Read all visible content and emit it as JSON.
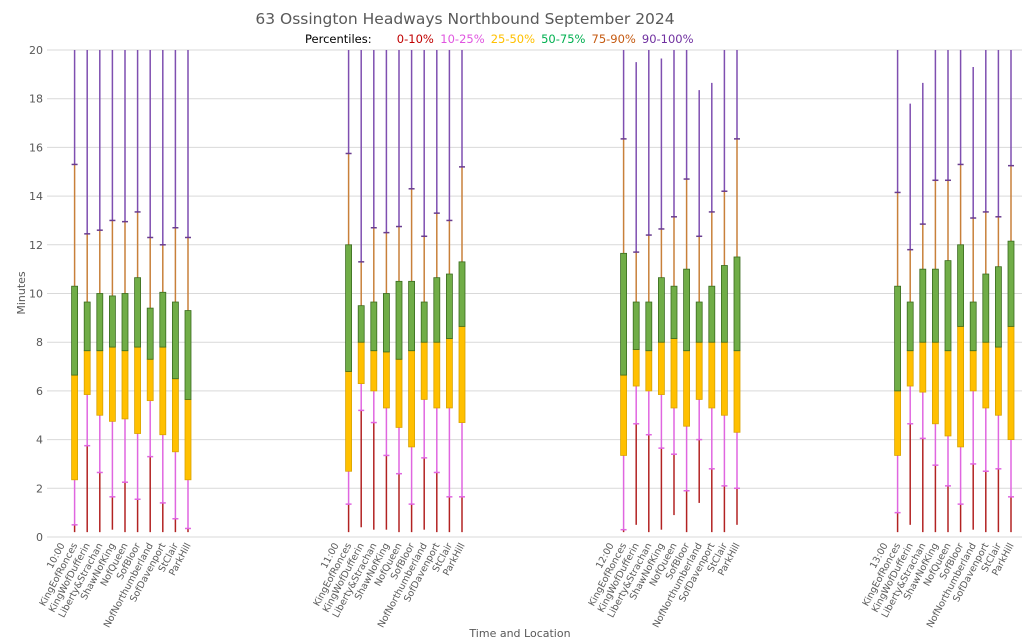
{
  "chart_data": {
    "type": "box",
    "title": "63 Ossington Headways Northbound September 2024",
    "legend": {
      "prefix": "Percentiles:",
      "entries": [
        {
          "label": "0-10%",
          "color": "#c00000"
        },
        {
          "label": "10-25%",
          "color": "#e055e0"
        },
        {
          "label": "25-50%",
          "color": "#ffc000"
        },
        {
          "label": "50-75%",
          "color": "#00b050"
        },
        {
          "label": "75-90%",
          "color": "#c55a11"
        },
        {
          "label": "90-100%",
          "color": "#7030a0"
        }
      ],
      "placement": "top-center"
    },
    "segment_colors": {
      "p0_10": "#b22222",
      "p10_25": "#e066e0",
      "p25_50": "#ffc000",
      "p50_75": "#70ad47",
      "p75_90": "#c8803a",
      "p90_100": "#7f4fb0",
      "box_border": "#3a6b1e",
      "grid": "#d9d9d9"
    },
    "ylabel": "Minutes",
    "xlabel": "Time and Location",
    "ylim": [
      0,
      20
    ],
    "yticks": [
      0,
      2,
      4,
      6,
      8,
      10,
      12,
      14,
      16,
      18,
      20
    ],
    "grid": true,
    "locations": [
      "KingEofRonces",
      "KingWofDufferin",
      "Liberty&Strachan",
      "ShawNofKing",
      "NofQueen",
      "SofBloor",
      "NofNorthumberland",
      "SofDavenport",
      "StClair",
      "ParkHill"
    ],
    "groups": [
      {
        "time": "10:00",
        "boxes": [
          {
            "min": 0.2,
            "p10": 0.5,
            "p25": 2.35,
            "p50": 6.65,
            "p75": 10.3,
            "p90": 15.3,
            "max": 20
          },
          {
            "min": 0.2,
            "p10": 3.75,
            "p25": 5.85,
            "p50": 7.65,
            "p75": 9.65,
            "p90": 12.45,
            "max": 20
          },
          {
            "min": 0.2,
            "p10": 2.65,
            "p25": 5.0,
            "p50": 7.65,
            "p75": 10.0,
            "p90": 12.6,
            "max": 20
          },
          {
            "min": 0.3,
            "p10": 1.65,
            "p25": 4.75,
            "p50": 7.8,
            "p75": 9.9,
            "p90": 13.0,
            "max": 20
          },
          {
            "min": 0.2,
            "p10": 2.25,
            "p25": 4.85,
            "p50": 7.65,
            "p75": 10.0,
            "p90": 12.95,
            "max": 20
          },
          {
            "min": 0.2,
            "p10": 1.55,
            "p25": 4.25,
            "p50": 7.8,
            "p75": 10.65,
            "p90": 13.35,
            "max": 20
          },
          {
            "min": 0.2,
            "p10": 3.3,
            "p25": 5.6,
            "p50": 7.3,
            "p75": 9.4,
            "p90": 12.3,
            "max": 20
          },
          {
            "min": 0.2,
            "p10": 1.4,
            "p25": 4.2,
            "p50": 7.8,
            "p75": 10.05,
            "p90": 12.0,
            "max": 20
          },
          {
            "min": 0.2,
            "p10": 0.75,
            "p25": 3.5,
            "p50": 6.5,
            "p75": 9.65,
            "p90": 12.7,
            "max": 20
          },
          {
            "min": 0.2,
            "p10": 0.35,
            "p25": 2.35,
            "p50": 5.65,
            "p75": 9.3,
            "p90": 12.3,
            "max": 20
          }
        ]
      },
      {
        "time": "11:00",
        "boxes": [
          {
            "min": 0.2,
            "p10": 1.35,
            "p25": 2.7,
            "p50": 6.8,
            "p75": 12.0,
            "p90": 15.75,
            "max": 20
          },
          {
            "min": 0.4,
            "p10": 5.2,
            "p25": 6.3,
            "p50": 8.0,
            "p75": 9.5,
            "p90": 11.3,
            "max": 20
          },
          {
            "min": 0.3,
            "p10": 4.7,
            "p25": 6.0,
            "p50": 7.65,
            "p75": 9.65,
            "p90": 12.7,
            "max": 20
          },
          {
            "min": 0.3,
            "p10": 3.35,
            "p25": 5.3,
            "p50": 7.6,
            "p75": 10.0,
            "p90": 12.5,
            "max": 20
          },
          {
            "min": 0.2,
            "p10": 2.6,
            "p25": 4.5,
            "p50": 7.3,
            "p75": 10.5,
            "p90": 12.75,
            "max": 20
          },
          {
            "min": 0.2,
            "p10": 1.35,
            "p25": 3.7,
            "p50": 7.65,
            "p75": 10.5,
            "p90": 14.3,
            "max": 20
          },
          {
            "min": 0.3,
            "p10": 3.25,
            "p25": 5.65,
            "p50": 8.0,
            "p75": 9.65,
            "p90": 12.35,
            "max": 20
          },
          {
            "min": 0.2,
            "p10": 2.65,
            "p25": 5.3,
            "p50": 8.0,
            "p75": 10.65,
            "p90": 13.3,
            "max": 20
          },
          {
            "min": 0.2,
            "p10": 1.65,
            "p25": 5.3,
            "p50": 8.15,
            "p75": 10.8,
            "p90": 13.0,
            "max": 20
          },
          {
            "min": 0.2,
            "p10": 1.65,
            "p25": 4.7,
            "p50": 8.65,
            "p75": 11.3,
            "p90": 15.2,
            "max": 20
          }
        ]
      },
      {
        "time": "12:00",
        "boxes": [
          {
            "min": 0.2,
            "p10": 0.3,
            "p25": 3.35,
            "p50": 6.65,
            "p75": 11.65,
            "p90": 16.35,
            "max": 20
          },
          {
            "min": 0.5,
            "p10": 4.65,
            "p25": 6.2,
            "p50": 7.7,
            "p75": 9.65,
            "p90": 11.7,
            "max": 19.5
          },
          {
            "min": 0.2,
            "p10": 4.2,
            "p25": 6.0,
            "p50": 7.65,
            "p75": 9.65,
            "p90": 12.4,
            "max": 20
          },
          {
            "min": 0.3,
            "p10": 3.65,
            "p25": 5.85,
            "p50": 8.0,
            "p75": 10.65,
            "p90": 12.65,
            "max": 19.65
          },
          {
            "min": 0.9,
            "p10": 3.4,
            "p25": 5.3,
            "p50": 8.15,
            "p75": 10.3,
            "p90": 13.15,
            "max": 20
          },
          {
            "min": 0.2,
            "p10": 1.9,
            "p25": 4.55,
            "p50": 7.65,
            "p75": 11.0,
            "p90": 14.7,
            "max": 20
          },
          {
            "min": 1.4,
            "p10": 4.0,
            "p25": 5.65,
            "p50": 8.0,
            "p75": 9.65,
            "p90": 12.35,
            "max": 18.35
          },
          {
            "min": 0.2,
            "p10": 2.8,
            "p25": 5.3,
            "p50": 8.0,
            "p75": 10.3,
            "p90": 13.35,
            "max": 18.65
          },
          {
            "min": 0.2,
            "p10": 2.1,
            "p25": 5.0,
            "p50": 8.0,
            "p75": 11.15,
            "p90": 14.2,
            "max": 20
          },
          {
            "min": 0.5,
            "p10": 2.0,
            "p25": 4.3,
            "p50": 7.65,
            "p75": 11.5,
            "p90": 16.35,
            "max": 20
          }
        ]
      },
      {
        "time": "13:00",
        "boxes": [
          {
            "min": 0.2,
            "p10": 1.0,
            "p25": 3.35,
            "p50": 6.0,
            "p75": 10.3,
            "p90": 14.15,
            "max": 20
          },
          {
            "min": 0.5,
            "p10": 4.65,
            "p25": 6.2,
            "p50": 7.65,
            "p75": 9.65,
            "p90": 11.8,
            "max": 17.8
          },
          {
            "min": 0.2,
            "p10": 4.05,
            "p25": 5.95,
            "p50": 8.0,
            "p75": 11.0,
            "p90": 12.85,
            "max": 18.65
          },
          {
            "min": 0.2,
            "p10": 2.95,
            "p25": 4.65,
            "p50": 8.0,
            "p75": 11.0,
            "p90": 14.65,
            "max": 20
          },
          {
            "min": 0.2,
            "p10": 2.1,
            "p25": 4.15,
            "p50": 7.65,
            "p75": 11.35,
            "p90": 14.65,
            "max": 20
          },
          {
            "min": 0.2,
            "p10": 1.35,
            "p25": 3.7,
            "p50": 8.65,
            "p75": 12.0,
            "p90": 15.3,
            "max": 20
          },
          {
            "min": 0.3,
            "p10": 3.0,
            "p25": 6.0,
            "p50": 7.65,
            "p75": 9.65,
            "p90": 13.1,
            "max": 19.3
          },
          {
            "min": 0.2,
            "p10": 2.7,
            "p25": 5.3,
            "p50": 8.0,
            "p75": 10.8,
            "p90": 13.35,
            "max": 20
          },
          {
            "min": 0.2,
            "p10": 2.8,
            "p25": 5.0,
            "p50": 7.8,
            "p75": 11.1,
            "p90": 13.15,
            "max": 20
          },
          {
            "min": 0.2,
            "p10": 1.65,
            "p25": 4.0,
            "p50": 8.65,
            "p75": 12.15,
            "p90": 15.25,
            "max": 20
          }
        ]
      }
    ]
  }
}
